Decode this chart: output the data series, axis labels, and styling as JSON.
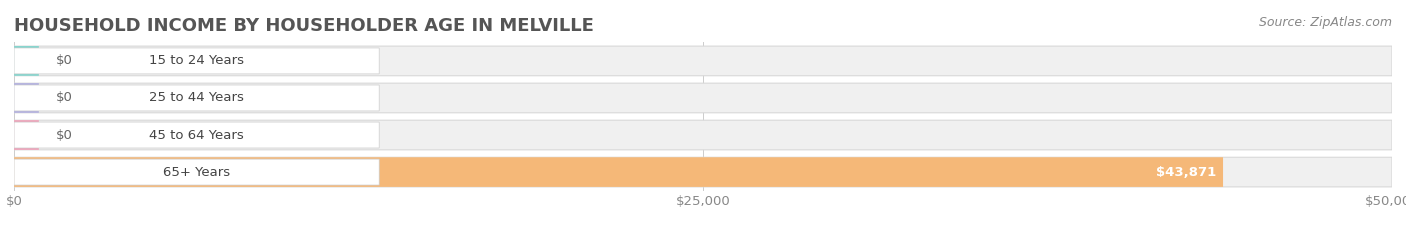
{
  "title": "HOUSEHOLD INCOME BY HOUSEHOLDER AGE IN MELVILLE",
  "source": "Source: ZipAtlas.com",
  "categories": [
    "15 to 24 Years",
    "25 to 44 Years",
    "45 to 64 Years",
    "65+ Years"
  ],
  "values": [
    0,
    0,
    0,
    43871
  ],
  "bar_colors": [
    "#7dd4cc",
    "#b0aee0",
    "#f0a0b8",
    "#f5b878"
  ],
  "bar_bg_color": "#f0f0f0",
  "background_color": "#ffffff",
  "xlim": [
    0,
    50000
  ],
  "xticks": [
    0,
    25000,
    50000
  ],
  "xtick_labels": [
    "$0",
    "$25,000",
    "$50,000"
  ],
  "value_labels": [
    "$0",
    "$0",
    "$0",
    "$43,871"
  ],
  "title_fontsize": 13,
  "label_fontsize": 9.5,
  "source_fontsize": 9
}
